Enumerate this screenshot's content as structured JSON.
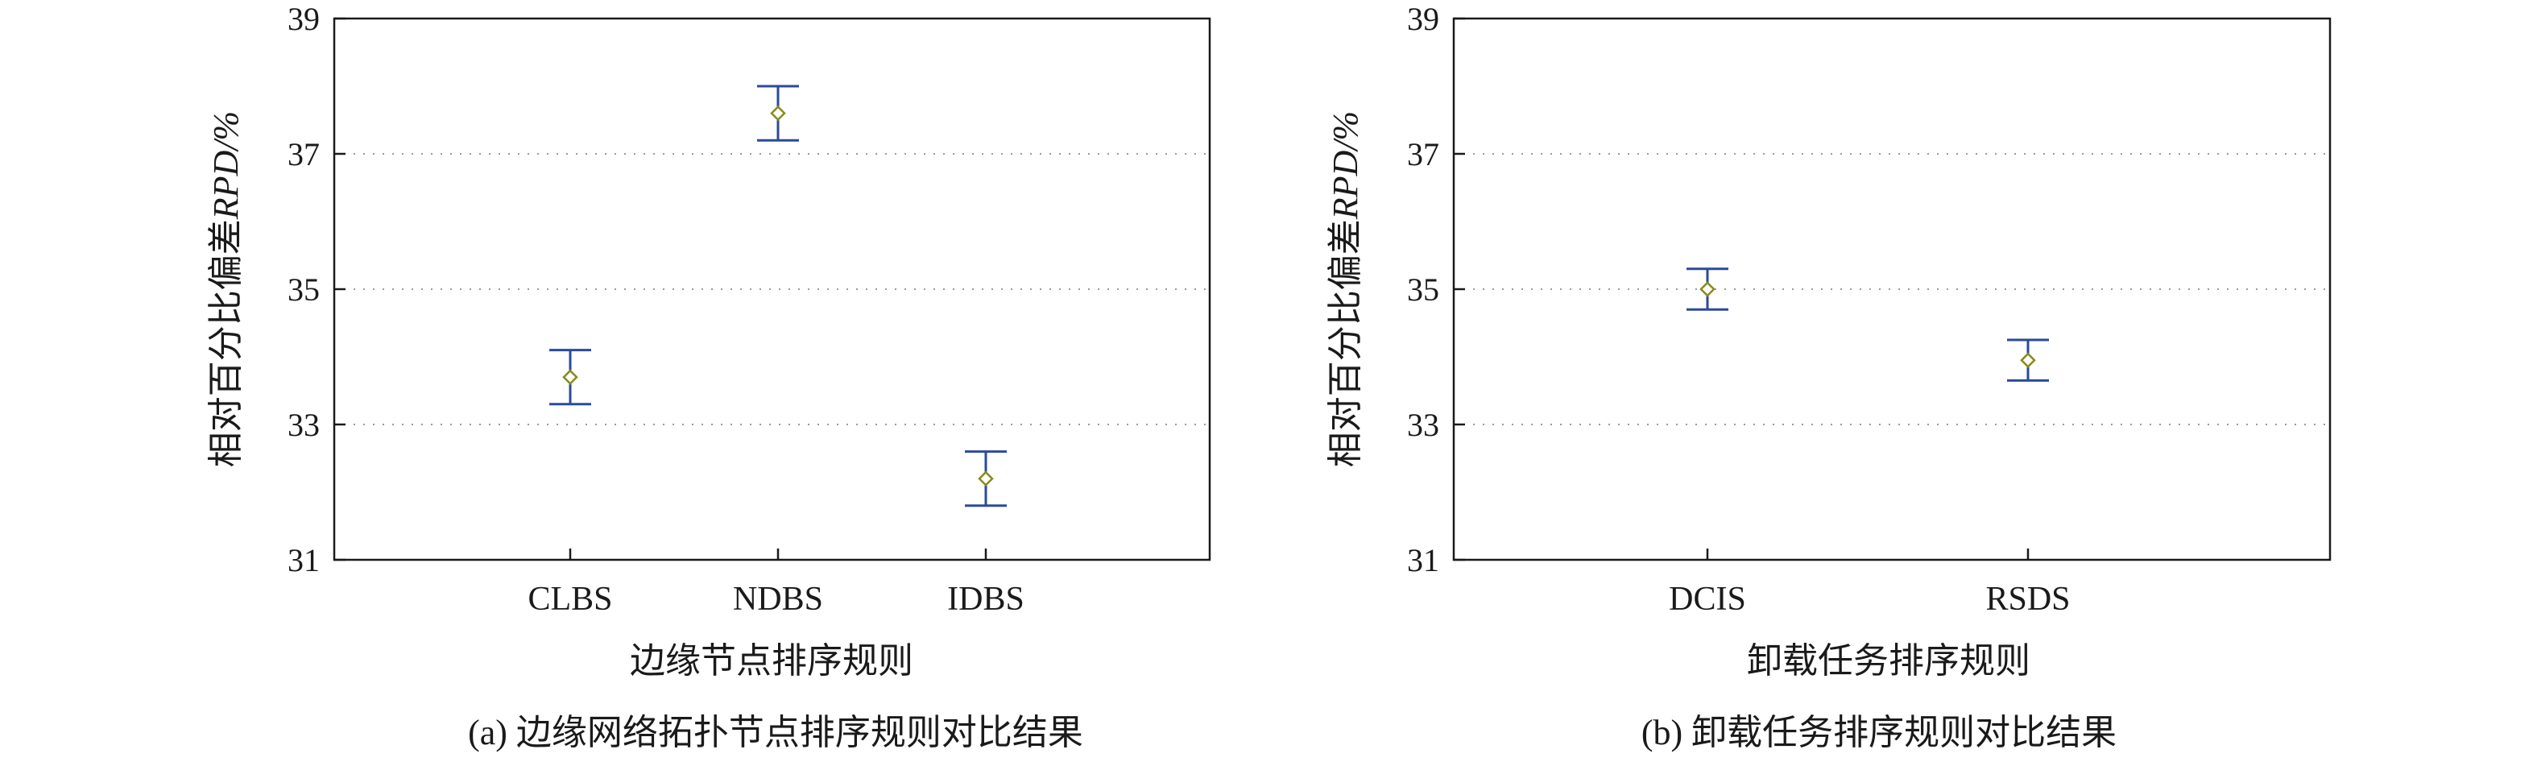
{
  "chart_data": [
    {
      "type": "errorbar",
      "panel_caption": "(a)  边缘网络拓扑节点排序规则对比结果",
      "xlabel": "边缘节点排序规则",
      "ylabel": "相对百分比偏差RPD/%",
      "ylabel_main": "相对百分比偏差",
      "ylabel_italic": "RPD",
      "ylabel_unit": "/%",
      "categories": [
        "CLBS",
        "NDBS",
        "IDBS"
      ],
      "means": [
        33.7,
        37.6,
        32.2
      ],
      "lower": [
        33.3,
        37.2,
        31.8
      ],
      "upper": [
        34.1,
        38.0,
        32.6
      ],
      "ylim": [
        31,
        39
      ],
      "yticks": [
        31,
        33,
        35,
        37,
        39
      ],
      "grid": "horizontal-dotted",
      "colors": {
        "errorbar": "#2b4a9a",
        "marker": "#8a8a1e"
      }
    },
    {
      "type": "errorbar",
      "panel_caption": "(b)  卸载任务排序规则对比结果",
      "xlabel": "卸载任务排序规则",
      "ylabel": "相对百分比偏差RPD/%",
      "ylabel_main": "相对百分比偏差",
      "ylabel_italic": "RPD",
      "ylabel_unit": "/%",
      "categories": [
        "DCIS",
        "RSDS"
      ],
      "means": [
        35.0,
        33.95
      ],
      "lower": [
        34.7,
        33.65
      ],
      "upper": [
        35.3,
        34.25
      ],
      "ylim": [
        31,
        39
      ],
      "yticks": [
        31,
        33,
        35,
        37,
        39
      ],
      "grid": "horizontal-dotted",
      "colors": {
        "errorbar": "#2b4a9a",
        "marker": "#8a8a1e"
      }
    }
  ]
}
